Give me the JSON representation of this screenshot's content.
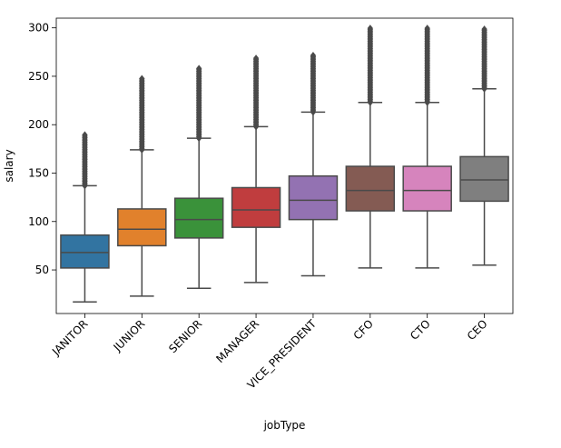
{
  "chart_data": {
    "type": "box",
    "title": "",
    "xlabel": "jobType",
    "ylabel": "salary",
    "ylim": [
      5,
      310
    ],
    "yticks": [
      50,
      100,
      150,
      200,
      250,
      300
    ],
    "categories": [
      "JANITOR",
      "JUNIOR",
      "SENIOR",
      "MANAGER",
      "VICE_PRESIDENT",
      "CFO",
      "CTO",
      "CEO"
    ],
    "boxes": [
      {
        "category": "JANITOR",
        "color": "#3274a1",
        "whisker_low": 17,
        "q1": 52,
        "median": 68,
        "q3": 86,
        "whisker_high": 137,
        "outliers_low": 137,
        "outliers_high": 190
      },
      {
        "category": "JUNIOR",
        "color": "#e1812c",
        "whisker_low": 23,
        "q1": 75,
        "median": 92,
        "q3": 113,
        "whisker_high": 174,
        "outliers_low": 174,
        "outliers_high": 248
      },
      {
        "category": "SENIOR",
        "color": "#3a923a",
        "whisker_low": 31,
        "q1": 83,
        "median": 102,
        "q3": 124,
        "whisker_high": 186,
        "outliers_low": 186,
        "outliers_high": 259
      },
      {
        "category": "MANAGER",
        "color": "#c03d3e",
        "whisker_low": 37,
        "q1": 94,
        "median": 112,
        "q3": 135,
        "whisker_high": 198,
        "outliers_low": 198,
        "outliers_high": 270
      },
      {
        "category": "VICE_PRESIDENT",
        "color": "#9372b2",
        "whisker_low": 44,
        "q1": 102,
        "median": 122,
        "q3": 147,
        "whisker_high": 213,
        "outliers_low": 213,
        "outliers_high": 272
      },
      {
        "category": "CFO",
        "color": "#845b53",
        "whisker_low": 52,
        "q1": 111,
        "median": 132,
        "q3": 157,
        "whisker_high": 223,
        "outliers_low": 223,
        "outliers_high": 301
      },
      {
        "category": "CTO",
        "color": "#d684bd",
        "whisker_low": 52,
        "q1": 111,
        "median": 132,
        "q3": 157,
        "whisker_high": 223,
        "outliers_low": 223,
        "outliers_high": 301
      },
      {
        "category": "CEO",
        "color": "#7f7f7f",
        "whisker_low": 55,
        "q1": 121,
        "median": 143,
        "q3": 167,
        "whisker_high": 237,
        "outliers_low": 237,
        "outliers_high": 299
      }
    ]
  }
}
